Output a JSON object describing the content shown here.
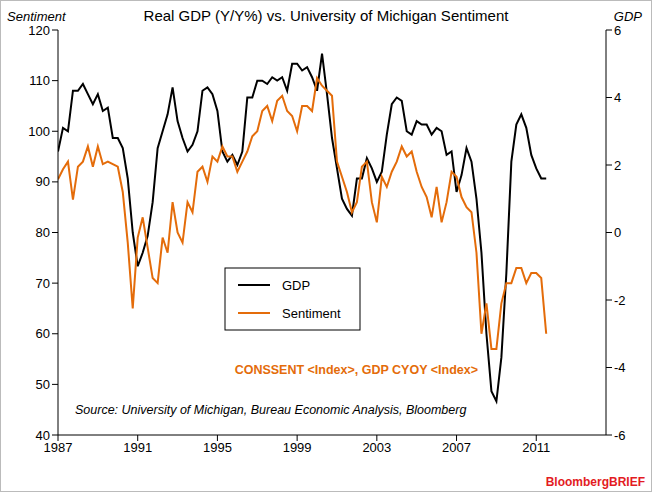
{
  "chart_data": {
    "type": "line",
    "title": "Real GDP (Y/Y%) vs. University of Michigan Sentiment",
    "y_label": "Sentiment",
    "y2_label": "GDP",
    "annotations": [
      "CONSSENT <Index>, GDP CYOY <Index>",
      "Source: University of Michigan, Bureau Economic Analysis, Bloomberg",
      "BloombergBRIEF"
    ],
    "x": [
      1987,
      1987.25,
      1987.5,
      1987.75,
      1988,
      1988.25,
      1988.5,
      1988.75,
      1989,
      1989.25,
      1989.5,
      1989.75,
      1990,
      1990.25,
      1990.5,
      1990.75,
      1991,
      1991.25,
      1991.5,
      1991.75,
      1992,
      1992.25,
      1992.5,
      1992.75,
      1993,
      1993.25,
      1993.5,
      1993.75,
      1994,
      1994.25,
      1994.5,
      1994.75,
      1995,
      1995.25,
      1995.5,
      1995.75,
      1996,
      1996.25,
      1996.5,
      1996.75,
      1997,
      1997.25,
      1997.5,
      1997.75,
      1998,
      1998.25,
      1998.5,
      1998.75,
      1999,
      1999.25,
      1999.5,
      1999.75,
      2000,
      2000.25,
      2000.5,
      2000.75,
      2001,
      2001.25,
      2001.5,
      2001.75,
      2002,
      2002.25,
      2002.5,
      2002.75,
      2003,
      2003.25,
      2003.5,
      2003.75,
      2004,
      2004.25,
      2004.5,
      2004.75,
      2005,
      2005.25,
      2005.5,
      2005.75,
      2006,
      2006.25,
      2006.5,
      2006.75,
      2007,
      2007.25,
      2007.5,
      2007.75,
      2008,
      2008.25,
      2008.5,
      2008.75,
      2009,
      2009.25,
      2009.5,
      2009.75,
      2010,
      2010.25,
      2010.5,
      2010.75,
      2011,
      2011.25,
      2011.5
    ],
    "series": [
      {
        "name": "GDP",
        "color": "#000000",
        "axis": "y2",
        "values": [
          2.4,
          3.1,
          3.0,
          4.2,
          4.2,
          4.4,
          4.1,
          3.8,
          4.1,
          3.6,
          3.7,
          2.8,
          2.8,
          2.5,
          1.6,
          0.0,
          -1.0,
          -0.6,
          -0.1,
          0.9,
          2.5,
          3.0,
          3.5,
          4.3,
          3.3,
          2.8,
          2.4,
          2.6,
          3.0,
          4.2,
          4.3,
          4.1,
          3.6,
          2.4,
          2.1,
          2.3,
          2.0,
          2.4,
          4.0,
          4.0,
          4.5,
          4.5,
          4.4,
          4.6,
          4.5,
          4.6,
          4.2,
          5.0,
          5.0,
          4.8,
          4.9,
          4.6,
          4.2,
          5.3,
          4.1,
          2.8,
          1.9,
          1.0,
          0.7,
          0.5,
          1.6,
          1.6,
          2.2,
          1.9,
          1.5,
          1.8,
          2.9,
          3.8,
          4.0,
          3.9,
          3.0,
          2.9,
          3.3,
          3.2,
          3.2,
          2.9,
          3.1,
          3.0,
          2.3,
          2.4,
          1.2,
          1.7,
          2.5,
          2.1,
          1.0,
          -0.6,
          -3.0,
          -4.7,
          -5.0,
          -3.7,
          -1.2,
          2.1,
          3.2,
          3.5,
          3.1,
          2.3,
          1.9,
          1.6,
          1.6
        ]
      },
      {
        "name": "Sentiment",
        "color": "#E46C0A",
        "values": [
          90.5,
          92.5,
          94,
          86.5,
          93,
          94,
          97,
          93,
          97,
          93.5,
          94,
          93.5,
          93,
          88,
          78,
          65,
          79,
          83,
          77,
          71,
          70,
          79,
          76,
          86,
          80,
          78,
          86,
          84,
          92,
          93,
          90,
          95,
          94,
          97,
          95,
          95,
          92,
          94,
          96,
          99,
          100,
          104,
          105,
          102,
          106,
          107,
          104,
          103,
          100,
          105,
          105,
          104,
          110.5,
          109,
          108,
          107,
          94,
          91,
          88,
          84,
          86,
          93,
          94,
          86,
          82,
          91,
          89,
          92,
          94,
          97,
          95,
          96,
          92,
          89,
          87,
          83,
          89,
          82,
          86,
          92,
          91,
          87,
          85,
          84,
          76,
          60,
          66,
          57,
          57,
          66,
          70,
          70,
          73,
          73,
          70,
          72,
          72,
          71,
          60
        ]
      }
    ],
    "xlim": [
      1987,
      2014.5
    ],
    "xticks": [
      1987,
      1991,
      1995,
      1999,
      2003,
      2007,
      2011
    ],
    "ylim": [
      40,
      120
    ],
    "yticks": [
      40,
      50,
      60,
      70,
      80,
      90,
      100,
      110,
      120
    ],
    "y2lim": [
      -6,
      6
    ],
    "y2ticks": [
      -6,
      -4,
      -2,
      0,
      2,
      4,
      6
    ],
    "grid": false,
    "legend": "center"
  }
}
